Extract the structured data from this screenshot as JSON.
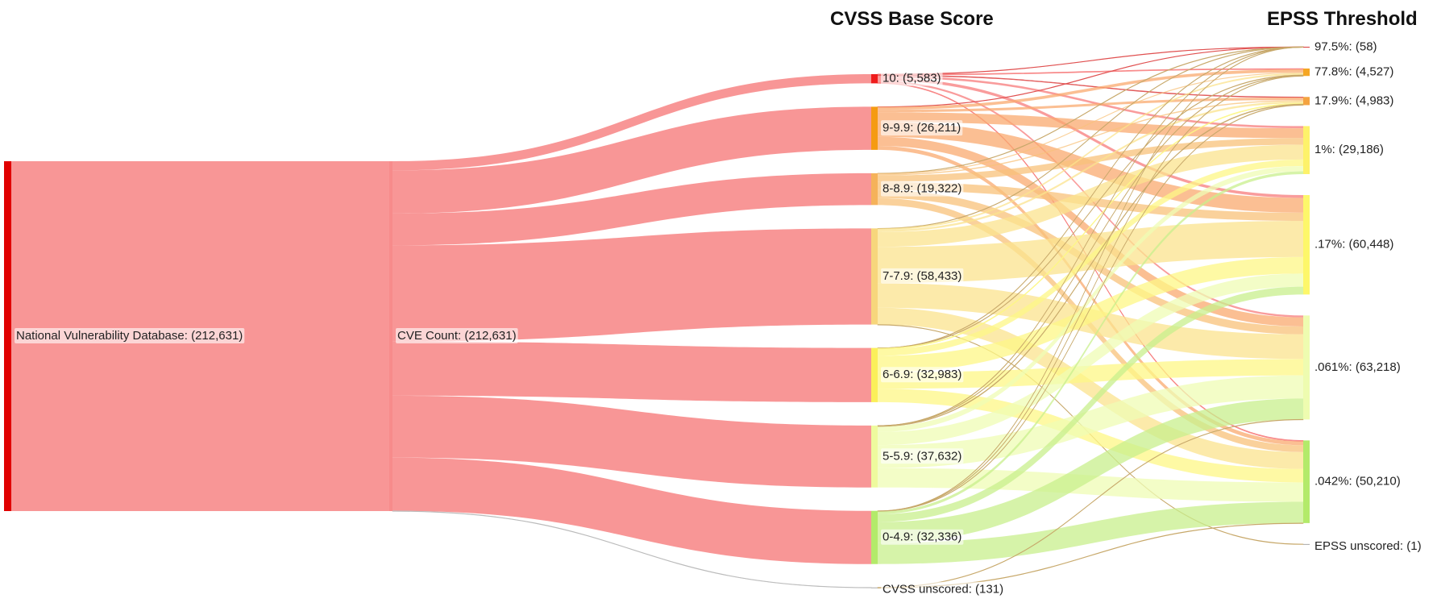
{
  "headers": {
    "cvss": "CVSS Base Score",
    "epss": "EPSS Threshold"
  },
  "chart_data": {
    "type": "sankey",
    "nodes": [
      {
        "id": "nvd",
        "label": "National Vulnerability Database: (212,631)",
        "value": 212631,
        "column": 0,
        "color": "#e00000",
        "fill": "#f78b8b"
      },
      {
        "id": "cve",
        "label": "CVE Count: (212,631)",
        "value": 212631,
        "column": 1,
        "color": "#f78b8b",
        "fill": "#f78b8b"
      },
      {
        "id": "c10",
        "label": "10: (5,583)",
        "value": 5583,
        "column": 2,
        "color": "#ef1c1c",
        "fill": "#f77b7b"
      },
      {
        "id": "c9",
        "label": "9-9.9: (26,211)",
        "value": 26211,
        "column": 2,
        "color": "#f59b12",
        "fill": "#f9a96f"
      },
      {
        "id": "c8",
        "label": "8-8.9: (19,322)",
        "value": 19322,
        "column": 2,
        "color": "#f5b25a",
        "fill": "#f8c27a"
      },
      {
        "id": "c7",
        "label": "7-7.9: (58,433)",
        "value": 58433,
        "column": 2,
        "color": "#f7d67c",
        "fill": "#fbe38e"
      },
      {
        "id": "c6",
        "label": "6-6.9: (32,983)",
        "value": 32983,
        "column": 2,
        "color": "#fbef5a",
        "fill": "#fdf785"
      },
      {
        "id": "c5",
        "label": "5-5.9: (37,632)",
        "value": 37632,
        "column": 2,
        "color": "#eefa9e",
        "fill": "#effcb4"
      },
      {
        "id": "c0",
        "label": "0-4.9: (32,336)",
        "value": 32336,
        "column": 2,
        "color": "#b3ea6a",
        "fill": "#c8ef8c"
      },
      {
        "id": "cun",
        "label": "CVSS unscored: (131)",
        "value": 131,
        "column": 2,
        "color": "#aaaaaa",
        "fill": "#bbbbbb"
      },
      {
        "id": "e975",
        "label": "97.5%: (58)",
        "value": 58,
        "column": 3,
        "color": "#d93a3a",
        "fill": "#d93a3a"
      },
      {
        "id": "e778",
        "label": "77.8%: (4,527)",
        "value": 4527,
        "column": 3,
        "color": "#f5a623",
        "fill": "#f5b25a"
      },
      {
        "id": "e179",
        "label": "17.9%: (4,983)",
        "value": 4983,
        "column": 3,
        "color": "#f4a340",
        "fill": "#f4a340"
      },
      {
        "id": "e1",
        "label": "1%: (29,186)",
        "value": 29186,
        "column": 3,
        "color": "#fdf26a",
        "fill": "#fdf785"
      },
      {
        "id": "e017",
        "label": ".17%: (60,448)",
        "value": 60448,
        "column": 3,
        "color": "#fdf76a",
        "fill": "#fdf785"
      },
      {
        "id": "e061",
        "label": ".061%: (63,218)",
        "value": 63218,
        "column": 3,
        "color": "#eefcb0",
        "fill": "#effcb4"
      },
      {
        "id": "e042",
        "label": ".042%: (50,210)",
        "value": 50210,
        "column": 3,
        "color": "#b3ea6a",
        "fill": "#c8ef8c"
      },
      {
        "id": "eun",
        "label": "EPSS unscored: (1)",
        "value": 1,
        "column": 3,
        "color": "#aaaaaa",
        "fill": "#bbbbbb"
      }
    ],
    "links": [
      {
        "source": "nvd",
        "target": "cve",
        "value": 212631
      },
      {
        "source": "cve",
        "target": "c10",
        "value": 5583
      },
      {
        "source": "cve",
        "target": "c9",
        "value": 26211
      },
      {
        "source": "cve",
        "target": "c8",
        "value": 19322
      },
      {
        "source": "cve",
        "target": "c7",
        "value": 58433
      },
      {
        "source": "cve",
        "target": "c6",
        "value": 32983
      },
      {
        "source": "cve",
        "target": "c5",
        "value": 37632
      },
      {
        "source": "cve",
        "target": "c0",
        "value": 32336
      },
      {
        "source": "cve",
        "target": "cun",
        "value": 131
      },
      {
        "source": "c10",
        "target": "e975",
        "value": 15
      },
      {
        "source": "c10",
        "target": "e778",
        "value": 500
      },
      {
        "source": "c10",
        "target": "e179",
        "value": 400
      },
      {
        "source": "c10",
        "target": "e1",
        "value": 1300
      },
      {
        "source": "c10",
        "target": "e017",
        "value": 1700
      },
      {
        "source": "c10",
        "target": "e061",
        "value": 1168
      },
      {
        "source": "c10",
        "target": "e042",
        "value": 500
      },
      {
        "source": "c9",
        "target": "e975",
        "value": 20
      },
      {
        "source": "c9",
        "target": "e778",
        "value": 1800
      },
      {
        "source": "c9",
        "target": "e179",
        "value": 1500
      },
      {
        "source": "c9",
        "target": "e1",
        "value": 6000
      },
      {
        "source": "c9",
        "target": "e017",
        "value": 9000
      },
      {
        "source": "c9",
        "target": "e061",
        "value": 5500
      },
      {
        "source": "c9",
        "target": "e042",
        "value": 2391
      },
      {
        "source": "c8",
        "target": "e975",
        "value": 8
      },
      {
        "source": "c8",
        "target": "e778",
        "value": 600
      },
      {
        "source": "c8",
        "target": "e179",
        "value": 700
      },
      {
        "source": "c8",
        "target": "e1",
        "value": 4000
      },
      {
        "source": "c8",
        "target": "e017",
        "value": 5000
      },
      {
        "source": "c8",
        "target": "e061",
        "value": 4800
      },
      {
        "source": "c8",
        "target": "e042",
        "value": 4214
      },
      {
        "source": "c7",
        "target": "e975",
        "value": 8
      },
      {
        "source": "c7",
        "target": "e778",
        "value": 1000
      },
      {
        "source": "c7",
        "target": "e179",
        "value": 1200
      },
      {
        "source": "c7",
        "target": "e1",
        "value": 9000
      },
      {
        "source": "c7",
        "target": "e017",
        "value": 22000
      },
      {
        "source": "c7",
        "target": "e061",
        "value": 15000
      },
      {
        "source": "c7",
        "target": "e042",
        "value": 10224
      },
      {
        "source": "c7",
        "target": "eun",
        "value": 1
      },
      {
        "source": "c6",
        "target": "e975",
        "value": 3
      },
      {
        "source": "c6",
        "target": "e778",
        "value": 300
      },
      {
        "source": "c6",
        "target": "e179",
        "value": 500
      },
      {
        "source": "c6",
        "target": "e1",
        "value": 4000
      },
      {
        "source": "c6",
        "target": "e017",
        "value": 10000
      },
      {
        "source": "c6",
        "target": "e061",
        "value": 10000
      },
      {
        "source": "c6",
        "target": "e042",
        "value": 8180
      },
      {
        "source": "c5",
        "target": "e975",
        "value": 3
      },
      {
        "source": "c5",
        "target": "e778",
        "value": 227
      },
      {
        "source": "c5",
        "target": "e179",
        "value": 450
      },
      {
        "source": "c5",
        "target": "e1",
        "value": 3200
      },
      {
        "source": "c5",
        "target": "e017",
        "value": 8000
      },
      {
        "source": "c5",
        "target": "e061",
        "value": 14000
      },
      {
        "source": "c5",
        "target": "e042",
        "value": 11752
      },
      {
        "source": "c0",
        "target": "e975",
        "value": 1
      },
      {
        "source": "c0",
        "target": "e778",
        "value": 100
      },
      {
        "source": "c0",
        "target": "e179",
        "value": 233
      },
      {
        "source": "c0",
        "target": "e1",
        "value": 1686
      },
      {
        "source": "c0",
        "target": "e017",
        "value": 4748
      },
      {
        "source": "c0",
        "target": "e061",
        "value": 12650
      },
      {
        "source": "c0",
        "target": "e042",
        "value": 12918
      },
      {
        "source": "cun",
        "target": "e061",
        "value": 100
      },
      {
        "source": "cun",
        "target": "e042",
        "value": 31
      }
    ]
  }
}
